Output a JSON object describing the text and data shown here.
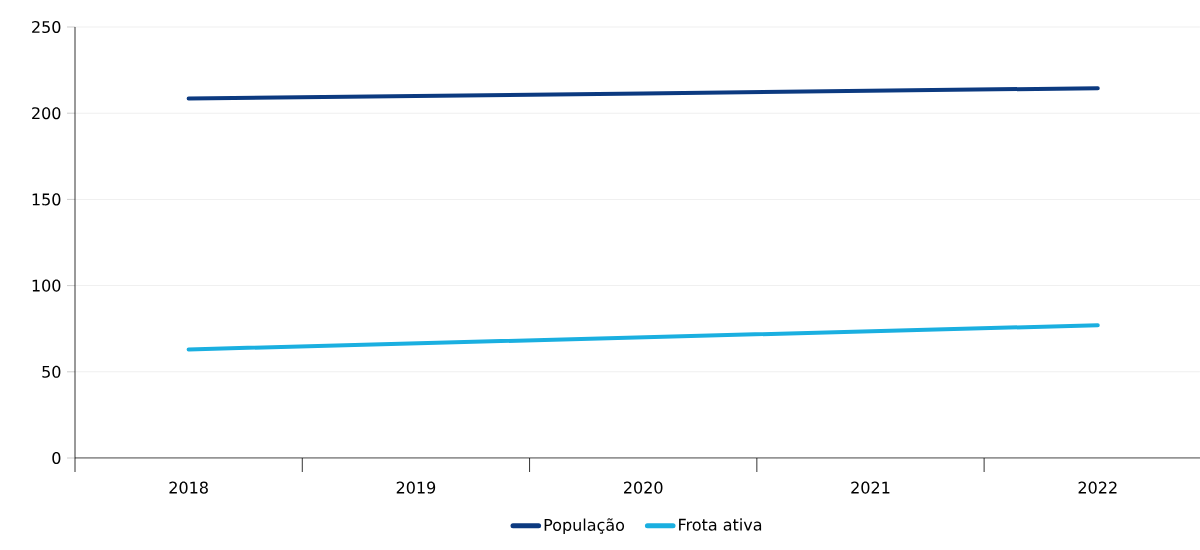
{
  "chart_data": {
    "type": "line",
    "categories": [
      "2018",
      "2019",
      "2020",
      "2021",
      "2022"
    ],
    "series": [
      {
        "name": "População",
        "color": "#0c3a80",
        "values": [
          208.5,
          210,
          211.5,
          213,
          214.5
        ]
      },
      {
        "name": "Frota ativa",
        "color": "#1aafe0",
        "values": [
          63,
          66.5,
          70,
          73.5,
          77
        ]
      }
    ],
    "ylim": [
      0,
      250
    ],
    "yticks": [
      0,
      50,
      100,
      150,
      200,
      250
    ],
    "grid": "y",
    "legend": "bottom",
    "marker": "none",
    "line_style": "solid"
  }
}
